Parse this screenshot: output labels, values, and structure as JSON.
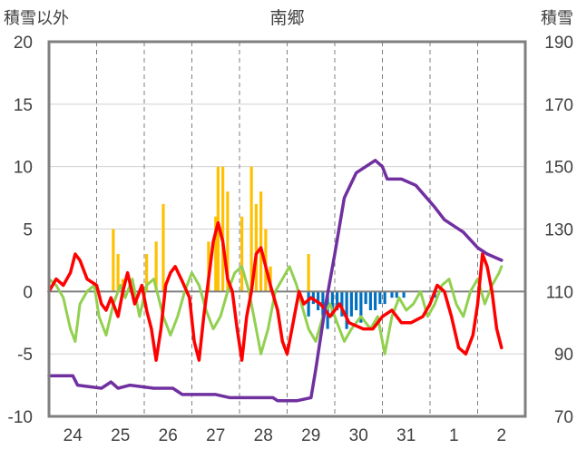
{
  "chart_data": {
    "type": "line",
    "title": "南郷",
    "ylabel_left": "積雪以外",
    "ylabel_right": "積雪",
    "left_axis": {
      "ylim": [
        -10,
        20
      ],
      "ticks": [
        "20",
        "15",
        "10",
        "5",
        "0",
        "-5",
        "-10"
      ]
    },
    "right_axis": {
      "ylim": [
        70,
        190
      ],
      "ticks": [
        "190",
        "170",
        "150",
        "130",
        "110",
        "90",
        "70"
      ]
    },
    "x": {
      "range": [
        0,
        10
      ],
      "days": [
        "24",
        "25",
        "26",
        "27",
        "28",
        "29",
        "30",
        "31",
        "1",
        "2"
      ]
    },
    "grid": "dashed vertical at day boundaries, solid horizontal at integer steps of 5",
    "colors": {
      "temperature": "#ff0000",
      "humidity_like": "#92d050",
      "snow_depth": "#7030a0",
      "precip_pos": "#ffc000",
      "precip_neg": "#0070c0",
      "frame": "#7f7f7f"
    },
    "series": [
      {
        "key": "red",
        "axis": "left",
        "points": [
          [
            0,
            0
          ],
          [
            0.15,
            1
          ],
          [
            0.3,
            0.5
          ],
          [
            0.45,
            1.5
          ],
          [
            0.55,
            3
          ],
          [
            0.65,
            2.5
          ],
          [
            0.8,
            1
          ],
          [
            1,
            0.5
          ],
          [
            1.1,
            -1
          ],
          [
            1.2,
            -1.5
          ],
          [
            1.3,
            -0.5
          ],
          [
            1.45,
            -2
          ],
          [
            1.55,
            0
          ],
          [
            1.65,
            1.5
          ],
          [
            1.8,
            -1
          ],
          [
            1.95,
            0.5
          ],
          [
            2.05,
            -1.5
          ],
          [
            2.15,
            -3
          ],
          [
            2.25,
            -5.5
          ],
          [
            2.35,
            -3
          ],
          [
            2.45,
            0.5
          ],
          [
            2.55,
            1.5
          ],
          [
            2.65,
            2
          ],
          [
            2.8,
            0.8
          ],
          [
            2.95,
            -0.5
          ],
          [
            3.05,
            -4
          ],
          [
            3.15,
            -5.5
          ],
          [
            3.25,
            -2
          ],
          [
            3.35,
            1
          ],
          [
            3.45,
            4
          ],
          [
            3.55,
            5.5
          ],
          [
            3.65,
            4
          ],
          [
            3.75,
            1
          ],
          [
            3.85,
            0
          ],
          [
            3.95,
            -3
          ],
          [
            4.05,
            -5.5
          ],
          [
            4.15,
            -2
          ],
          [
            4.25,
            0
          ],
          [
            4.35,
            3
          ],
          [
            4.45,
            3.5
          ],
          [
            4.55,
            2
          ],
          [
            4.65,
            0.5
          ],
          [
            4.8,
            -1.5
          ],
          [
            4.9,
            -4
          ],
          [
            5.0,
            -5
          ],
          [
            5.1,
            -3
          ],
          [
            5.25,
            0
          ],
          [
            5.35,
            -1
          ],
          [
            5.5,
            -0.5
          ],
          [
            5.7,
            -1
          ],
          [
            5.9,
            -2
          ],
          [
            6.1,
            -1
          ],
          [
            6.3,
            -2.5
          ],
          [
            6.6,
            -3
          ],
          [
            6.8,
            -3
          ],
          [
            7.0,
            -2
          ],
          [
            7.2,
            -1.5
          ],
          [
            7.4,
            -2.5
          ],
          [
            7.6,
            -2.5
          ],
          [
            7.85,
            -2
          ],
          [
            8.0,
            -1
          ],
          [
            8.15,
            0.5
          ],
          [
            8.3,
            0
          ],
          [
            8.45,
            -2
          ],
          [
            8.6,
            -4.5
          ],
          [
            8.75,
            -5
          ],
          [
            8.9,
            -3.5
          ],
          [
            9.0,
            -1
          ],
          [
            9.1,
            3
          ],
          [
            9.2,
            2
          ],
          [
            9.3,
            0
          ],
          [
            9.4,
            -3
          ],
          [
            9.5,
            -4.5
          ]
        ]
      },
      {
        "key": "green",
        "axis": "left",
        "points": [
          [
            0,
            1
          ],
          [
            0.15,
            0.5
          ],
          [
            0.3,
            -0.5
          ],
          [
            0.45,
            -3
          ],
          [
            0.55,
            -4
          ],
          [
            0.65,
            -1
          ],
          [
            0.8,
            0
          ],
          [
            0.95,
            0.5
          ],
          [
            1.05,
            -2
          ],
          [
            1.2,
            -3.5
          ],
          [
            1.35,
            -1
          ],
          [
            1.5,
            0.5
          ],
          [
            1.6,
            -0.5
          ],
          [
            1.75,
            1
          ],
          [
            1.9,
            -2
          ],
          [
            2.05,
            0.5
          ],
          [
            2.2,
            1
          ],
          [
            2.3,
            -0.5
          ],
          [
            2.4,
            -2
          ],
          [
            2.55,
            -3.5
          ],
          [
            2.7,
            -2
          ],
          [
            2.85,
            0
          ],
          [
            3.0,
            1.5
          ],
          [
            3.15,
            0.5
          ],
          [
            3.3,
            -1.5
          ],
          [
            3.45,
            -3
          ],
          [
            3.6,
            -2
          ],
          [
            3.75,
            0
          ],
          [
            3.9,
            1.5
          ],
          [
            4.05,
            2
          ],
          [
            4.2,
            0
          ],
          [
            4.35,
            -3
          ],
          [
            4.45,
            -5
          ],
          [
            4.6,
            -3
          ],
          [
            4.75,
            0
          ],
          [
            4.9,
            1
          ],
          [
            5.05,
            2
          ],
          [
            5.2,
            0.5
          ],
          [
            5.3,
            -1
          ],
          [
            5.45,
            -3
          ],
          [
            5.6,
            -4
          ],
          [
            5.75,
            -2
          ],
          [
            5.9,
            -1
          ],
          [
            6.05,
            -2.5
          ],
          [
            6.2,
            -4
          ],
          [
            6.35,
            -3
          ],
          [
            6.55,
            -2
          ],
          [
            6.75,
            -3
          ],
          [
            6.9,
            -2
          ],
          [
            7.05,
            -5
          ],
          [
            7.2,
            -2
          ],
          [
            7.35,
            -0.5
          ],
          [
            7.5,
            -1.5
          ],
          [
            7.65,
            -1
          ],
          [
            7.8,
            0
          ],
          [
            7.95,
            -2
          ],
          [
            8.1,
            -1
          ],
          [
            8.25,
            0.5
          ],
          [
            8.4,
            1
          ],
          [
            8.55,
            -1
          ],
          [
            8.7,
            -2
          ],
          [
            8.85,
            0
          ],
          [
            9.0,
            1
          ],
          [
            9.15,
            -1
          ],
          [
            9.3,
            0.5
          ],
          [
            9.45,
            1.5
          ],
          [
            9.5,
            2
          ]
        ]
      },
      {
        "key": "purple",
        "axis": "right",
        "points": [
          [
            0,
            83
          ],
          [
            0.5,
            83
          ],
          [
            0.6,
            80
          ],
          [
            1.1,
            79
          ],
          [
            1.3,
            81
          ],
          [
            1.45,
            79
          ],
          [
            1.7,
            80
          ],
          [
            2.2,
            79
          ],
          [
            2.6,
            79
          ],
          [
            2.8,
            77
          ],
          [
            3.5,
            77
          ],
          [
            3.8,
            76
          ],
          [
            4.7,
            76
          ],
          [
            4.8,
            75
          ],
          [
            5.2,
            75
          ],
          [
            5.5,
            76
          ],
          [
            5.6,
            85
          ],
          [
            5.8,
            105
          ],
          [
            6.0,
            122
          ],
          [
            6.2,
            140
          ],
          [
            6.45,
            148
          ],
          [
            6.85,
            152
          ],
          [
            7.0,
            150
          ],
          [
            7.1,
            146
          ],
          [
            7.4,
            146
          ],
          [
            7.7,
            144
          ],
          [
            8.1,
            137
          ],
          [
            8.3,
            133
          ],
          [
            8.7,
            129
          ],
          [
            9.0,
            124
          ],
          [
            9.2,
            122
          ],
          [
            9.5,
            120
          ]
        ]
      }
    ],
    "bars_pos": [
      [
        1.35,
        5
      ],
      [
        1.45,
        3
      ],
      [
        1.55,
        1
      ],
      [
        2.05,
        3
      ],
      [
        2.25,
        4
      ],
      [
        2.4,
        7
      ],
      [
        3.35,
        4
      ],
      [
        3.5,
        6
      ],
      [
        3.55,
        10
      ],
      [
        3.65,
        10
      ],
      [
        3.75,
        8
      ],
      [
        4.05,
        6
      ],
      [
        4.25,
        10
      ],
      [
        4.35,
        7
      ],
      [
        4.45,
        8
      ],
      [
        4.55,
        5
      ],
      [
        4.65,
        2
      ],
      [
        5.45,
        3
      ]
    ],
    "bars_neg": [
      [
        5.45,
        -2
      ],
      [
        5.55,
        -1
      ],
      [
        5.65,
        -1.5
      ],
      [
        5.75,
        -2.5
      ],
      [
        5.85,
        -3
      ],
      [
        5.95,
        -2
      ],
      [
        6.05,
        -1.5
      ],
      [
        6.15,
        -2
      ],
      [
        6.25,
        -3
      ],
      [
        6.35,
        -2
      ],
      [
        6.45,
        -1.5
      ],
      [
        6.55,
        -2.5
      ],
      [
        6.65,
        -1
      ],
      [
        6.75,
        -1.5
      ],
      [
        6.85,
        -1.5
      ],
      [
        6.95,
        -1
      ],
      [
        7.05,
        -1
      ],
      [
        7.2,
        -0.5
      ],
      [
        7.3,
        -0.5
      ],
      [
        7.45,
        -0.5
      ],
      [
        8.1,
        -0.5
      ]
    ]
  }
}
